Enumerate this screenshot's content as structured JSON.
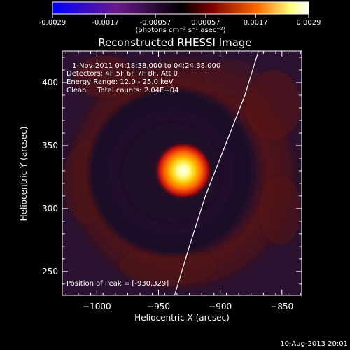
{
  "colorbar": {
    "tick_labels": [
      "-0.0029",
      "-0.0017",
      "-0.00057",
      "0.00057",
      "0.0017",
      "0.0029"
    ],
    "min": -0.0029,
    "max": 0.0029,
    "unit_label": "(photons cm⁻² s⁻¹ asec⁻²)",
    "colors": [
      "#0000ff",
      "#6a1a8a",
      "#000000",
      "#7a0000",
      "#ff6a00",
      "#ffff80",
      "#ffffff"
    ]
  },
  "chart_data": {
    "type": "heatmap",
    "title": "Reconstructed RHESSI Image",
    "xlabel": "Heliocentric X (arcsec)",
    "ylabel": "Heliocentric Y (arcsec)",
    "xlim": [
      -1028,
      -834
    ],
    "ylim": [
      231,
      425
    ],
    "x_ticks": [
      -1000,
      -950,
      -900,
      -850
    ],
    "x_tick_labels": [
      "−1000",
      "−950",
      "−900",
      "−850"
    ],
    "y_ticks": [
      250,
      300,
      350,
      400
    ],
    "y_tick_labels": [
      "250",
      "300",
      "350",
      "400"
    ],
    "peak": {
      "x": -930,
      "y": 329,
      "value": 0.0029
    },
    "limb_curve": [
      [
        -937,
        231
      ],
      [
        -925,
        270
      ],
      [
        -912,
        310
      ],
      [
        -896,
        350
      ],
      [
        -880,
        390
      ],
      [
        -869,
        425
      ]
    ],
    "annotations": {
      "time_range": "1-Nov-2011 04:18:38.000 to 04:24:38.000",
      "detectors": "Detectors: 4F 5F 6F 7F 8F, Att 0",
      "energy_range": "Energy Range: 12.0 - 25.0 keV",
      "clean_counts": "Clean     Total counts: 2.04E+04",
      "peak_position": "Position of Peak = [-930,329]"
    }
  },
  "footer": {
    "timestamp": "10-Aug-2013 20:01"
  }
}
